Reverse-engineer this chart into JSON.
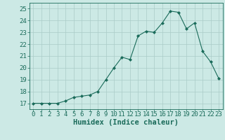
{
  "x": [
    0,
    1,
    2,
    3,
    4,
    5,
    6,
    7,
    8,
    9,
    10,
    11,
    12,
    13,
    14,
    15,
    16,
    17,
    18,
    19,
    20,
    21,
    22,
    23
  ],
  "y": [
    17.0,
    17.0,
    17.0,
    17.0,
    17.2,
    17.5,
    17.6,
    17.7,
    18.0,
    19.0,
    20.0,
    20.9,
    20.7,
    22.7,
    23.1,
    23.0,
    23.8,
    24.8,
    24.7,
    23.3,
    23.8,
    21.4,
    20.5,
    19.1
  ],
  "xlabel": "Humidex (Indice chaleur)",
  "xlim": [
    -0.5,
    23.5
  ],
  "ylim": [
    16.5,
    25.5
  ],
  "yticks": [
    17,
    18,
    19,
    20,
    21,
    22,
    23,
    24,
    25
  ],
  "xticks": [
    0,
    1,
    2,
    3,
    4,
    5,
    6,
    7,
    8,
    9,
    10,
    11,
    12,
    13,
    14,
    15,
    16,
    17,
    18,
    19,
    20,
    21,
    22,
    23
  ],
  "line_color": "#1a6b5a",
  "marker_color": "#1a6b5a",
  "bg_color": "#cce9e5",
  "grid_color": "#aaccc8",
  "xlabel_fontsize": 7.5,
  "tick_fontsize": 6.5
}
